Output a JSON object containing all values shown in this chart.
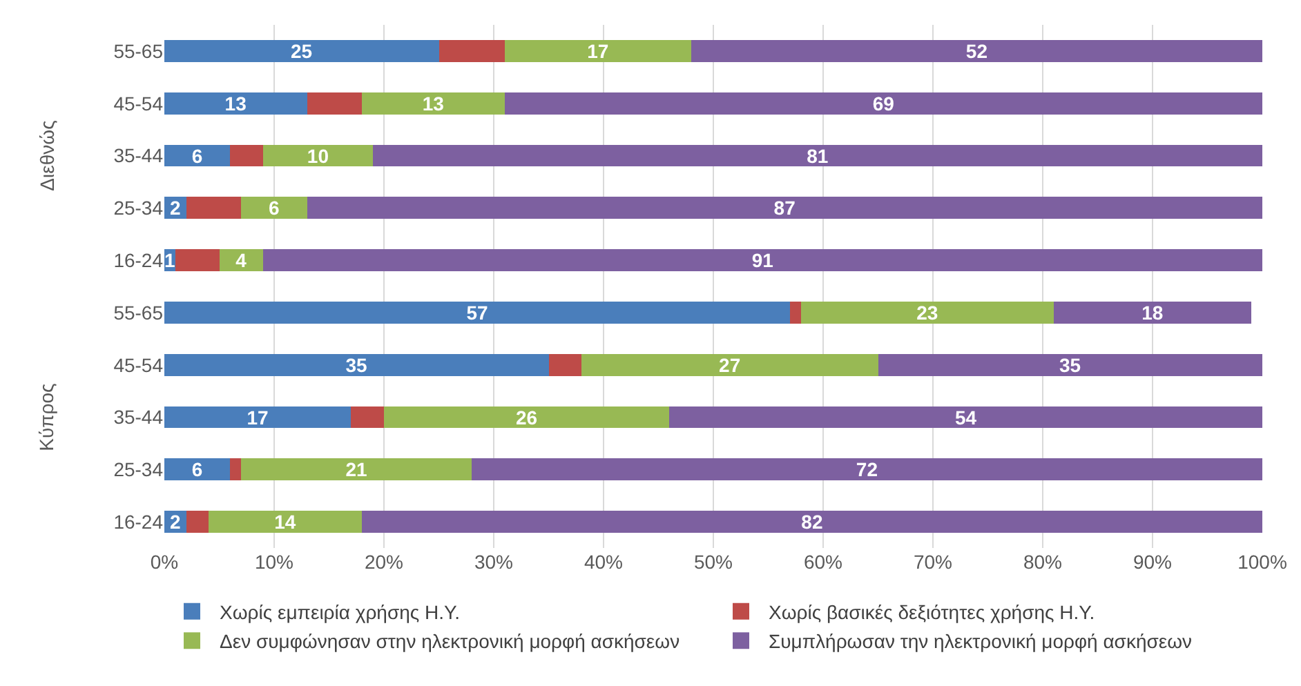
{
  "chart_data": {
    "type": "bar",
    "orientation": "horizontal",
    "stacked": true,
    "categories": [
      "55-65",
      "45-54",
      "35-44",
      "25-34",
      "16-24",
      "55-65",
      "45-54",
      "35-44",
      "25-34",
      "16-24"
    ],
    "annotations": [
      "Διεθνώς",
      "Κύπρος"
    ],
    "series": [
      {
        "name": "Χωρίς εμπειρία χρήσης Η.Υ.",
        "color": "#4a7ebb",
        "values": [
          25,
          13,
          6,
          2,
          1,
          57,
          35,
          17,
          6,
          2
        ],
        "value_labels": [
          "25",
          "13",
          "6",
          "2",
          "1",
          "57",
          "35",
          "17",
          "6",
          "2"
        ]
      },
      {
        "name": "Χωρίς βασικές δεξιότητες χρήσης Η.Υ.",
        "color": "#be4b48",
        "values": [
          6,
          5,
          3,
          5,
          4,
          1,
          3,
          3,
          1,
          2
        ]
      },
      {
        "name": "Δεν συμφώνησαν στην ηλεκτρονική μορφή ασκήσεων",
        "color": "#98b954",
        "values": [
          17,
          13,
          10,
          6,
          4,
          23,
          27,
          26,
          21,
          14
        ],
        "value_labels": [
          "17",
          "13",
          "10",
          "6",
          "4",
          "23",
          "27",
          "26",
          "21",
          "14"
        ]
      },
      {
        "name": "Συμπλήρωσαν την ηλεκτρονική μορφή ασκήσεων",
        "color": "#7d60a0",
        "values": [
          52,
          69,
          81,
          87,
          91,
          18,
          35,
          54,
          72,
          82
        ],
        "value_labels": [
          "52",
          "69",
          "81",
          "87",
          "91",
          "18",
          "35",
          "54",
          "72",
          "82"
        ]
      }
    ],
    "xlim": [
      0,
      100
    ],
    "xticks": [
      {
        "value": 0,
        "label": "0%"
      },
      {
        "value": 10,
        "label": "10%"
      },
      {
        "value": 20,
        "label": "20%"
      },
      {
        "value": 30,
        "label": "30%"
      },
      {
        "value": 40,
        "label": "40%"
      },
      {
        "value": 50,
        "label": "50%"
      },
      {
        "value": 60,
        "label": "60%"
      },
      {
        "value": 70,
        "label": "70%"
      },
      {
        "value": 80,
        "label": "80%"
      },
      {
        "value": 90,
        "label": "90%"
      },
      {
        "value": 100,
        "label": "100%"
      }
    ],
    "grid": "x",
    "legend": "bottom"
  }
}
